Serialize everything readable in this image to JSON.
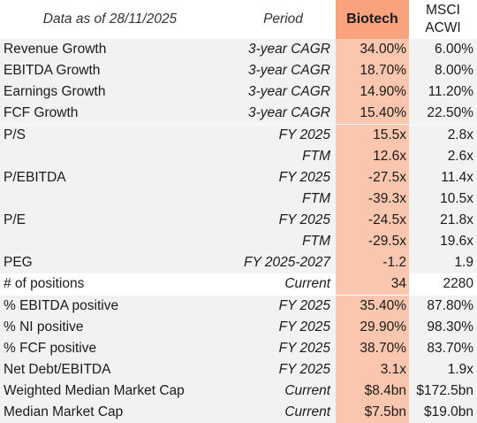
{
  "header": {
    "label_col": "Data as of 28/11/2025",
    "period_col": "Period",
    "biotech_col": "Biotech",
    "msci_line1": "MSCI",
    "msci_line2": "ACWI"
  },
  "colors": {
    "biotech_header": "#f9a37e",
    "biotech_cell": "#fbc6ae",
    "row_shade": "#f2f2f2"
  },
  "rows": [
    {
      "label": "Revenue Growth",
      "period": "3-year CAGR",
      "biotech": "34.00%",
      "msci": "6.00%"
    },
    {
      "label": "EBITDA Growth",
      "period": "3-year CAGR",
      "biotech": "18.70%",
      "msci": "8.00%"
    },
    {
      "label": "Earnings Growth",
      "period": "3-year CAGR",
      "biotech": "14.90%",
      "msci": "11.20%"
    },
    {
      "label": "FCF Growth",
      "period": "3-year CAGR",
      "biotech": "15.40%",
      "msci": "22.50%"
    },
    {
      "label": "P/S",
      "period": "FY 2025",
      "biotech": "15.5x",
      "msci": "2.8x"
    },
    {
      "label": "",
      "period": "FTM",
      "biotech": "12.6x",
      "msci": "2.6x"
    },
    {
      "label": "P/EBITDA",
      "period": "FY 2025",
      "biotech": "-27.5x",
      "msci": "11.4x"
    },
    {
      "label": "",
      "period": "FTM",
      "biotech": "-39.3x",
      "msci": "10.5x"
    },
    {
      "label": "P/E",
      "period": "FY 2025",
      "biotech": "-24.5x",
      "msci": "21.8x"
    },
    {
      "label": "",
      "period": "FTM",
      "biotech": "-29.5x",
      "msci": "19.6x"
    },
    {
      "label": "PEG",
      "period": "FY 2025-2027",
      "biotech": "-1.2",
      "msci": "1.9"
    },
    {
      "label": "# of positions",
      "period": "Current",
      "biotech": "34",
      "msci": "2280"
    },
    {
      "label": "% EBITDA positive",
      "period": "FY 2025",
      "biotech": "35.40%",
      "msci": "87.80%"
    },
    {
      "label": "% NI positive",
      "period": "FY 2025",
      "biotech": "29.90%",
      "msci": "98.30%"
    },
    {
      "label": "% FCF positive",
      "period": "FY 2025",
      "biotech": "38.70%",
      "msci": "83.70%"
    },
    {
      "label": "Net Debt/EBITDA",
      "period": "FY 2025",
      "biotech": "3.1x",
      "msci": "1.9x"
    },
    {
      "label": "Weighted Median Market Cap",
      "period": "Current",
      "biotech": "$8.4bn",
      "msci": "$172.5bn"
    },
    {
      "label": "Median Market Cap",
      "period": "Current",
      "biotech": "$7.5bn",
      "msci": "$19.0bn"
    }
  ]
}
